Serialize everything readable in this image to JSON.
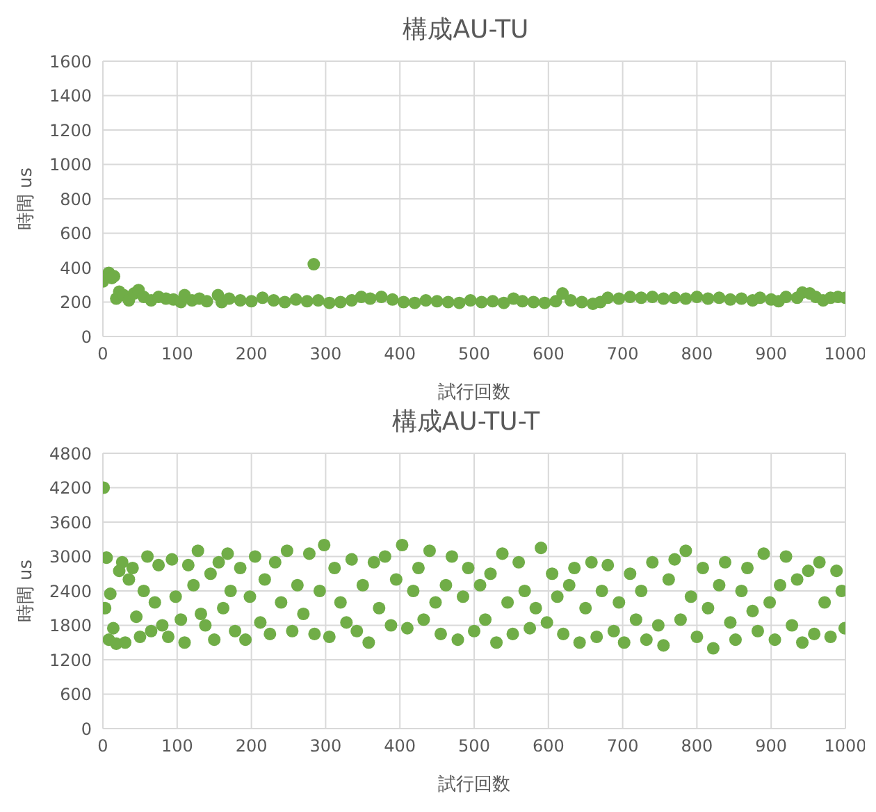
{
  "chart_data": [
    {
      "type": "scatter",
      "title": "構成AU-TU",
      "xlabel": "試行回数",
      "ylabel": "時間 us",
      "xlim": [
        0,
        1000
      ],
      "xticks": [
        0,
        100,
        200,
        300,
        400,
        500,
        600,
        700,
        800,
        900,
        1000
      ],
      "ylim": [
        0,
        1600
      ],
      "yticks": [
        0,
        200,
        400,
        600,
        800,
        1000,
        1200,
        1400,
        1600
      ],
      "grid": true,
      "marker": "circle",
      "series": [
        {
          "color": "#70ad47",
          "x": [
            0,
            8,
            12,
            15,
            18,
            22,
            28,
            35,
            42,
            48,
            55,
            65,
            75,
            85,
            95,
            105,
            110,
            120,
            130,
            140,
            155,
            160,
            170,
            185,
            200,
            215,
            230,
            245,
            260,
            275,
            284,
            290,
            305,
            320,
            335,
            348,
            360,
            375,
            390,
            405,
            420,
            435,
            450,
            465,
            480,
            495,
            510,
            525,
            540,
            553,
            565,
            580,
            595,
            610,
            619,
            630,
            645,
            660,
            670,
            680,
            695,
            710,
            725,
            740,
            755,
            770,
            785,
            800,
            815,
            830,
            845,
            860,
            875,
            885,
            900,
            910,
            920,
            935,
            942,
            952,
            960,
            970,
            980,
            990,
            1000
          ],
          "values": [
            320,
            370,
            340,
            350,
            220,
            260,
            240,
            210,
            250,
            270,
            230,
            210,
            230,
            220,
            215,
            200,
            240,
            210,
            220,
            205,
            240,
            200,
            220,
            210,
            205,
            225,
            210,
            200,
            215,
            205,
            420,
            210,
            195,
            200,
            210,
            230,
            220,
            230,
            215,
            200,
            195,
            210,
            205,
            200,
            195,
            210,
            200,
            205,
            195,
            220,
            205,
            200,
            195,
            205,
            250,
            210,
            200,
            190,
            200,
            225,
            220,
            230,
            225,
            230,
            220,
            225,
            220,
            230,
            220,
            225,
            215,
            220,
            210,
            225,
            215,
            205,
            230,
            225,
            255,
            250,
            230,
            210,
            225,
            230,
            225
          ]
        }
      ]
    },
    {
      "type": "scatter",
      "title": "構成AU-TU-T",
      "xlabel": "試行回数",
      "ylabel": "時間 us",
      "xlim": [
        0,
        1000
      ],
      "xticks": [
        0,
        100,
        200,
        300,
        400,
        500,
        600,
        700,
        800,
        900,
        1000
      ],
      "ylim": [
        0,
        4800
      ],
      "yticks": [
        0,
        600,
        1200,
        1800,
        2400,
        3000,
        3600,
        4200,
        4800
      ],
      "grid": true,
      "marker": "circle",
      "series": [
        {
          "color": "#70ad47",
          "x": [
            1,
            3,
            5,
            8,
            10,
            14,
            18,
            22,
            26,
            30,
            35,
            40,
            45,
            50,
            55,
            60,
            65,
            70,
            75,
            80,
            88,
            93,
            98,
            105,
            110,
            115,
            122,
            128,
            132,
            138,
            145,
            150,
            156,
            162,
            168,
            172,
            178,
            185,
            192,
            198,
            205,
            212,
            218,
            225,
            232,
            240,
            248,
            255,
            262,
            270,
            278,
            285,
            292,
            298,
            305,
            312,
            320,
            328,
            335,
            342,
            350,
            358,
            365,
            372,
            380,
            388,
            395,
            403,
            410,
            418,
            425,
            432,
            440,
            448,
            455,
            462,
            470,
            478,
            485,
            492,
            500,
            508,
            515,
            522,
            530,
            538,
            545,
            552,
            560,
            568,
            575,
            583,
            590,
            598,
            605,
            612,
            620,
            628,
            635,
            642,
            650,
            658,
            665,
            672,
            680,
            688,
            695,
            702,
            710,
            718,
            725,
            732,
            740,
            748,
            755,
            762,
            770,
            778,
            785,
            792,
            800,
            808,
            815,
            822,
            830,
            838,
            845,
            852,
            860,
            868,
            875,
            882,
            890,
            898,
            905,
            912,
            920,
            928,
            935,
            942,
            950,
            958,
            965,
            972,
            980,
            988,
            995,
            999
          ],
          "values": [
            4200,
            2100,
            2980,
            1550,
            2350,
            1750,
            1480,
            2750,
            2900,
            1500,
            2600,
            2800,
            1950,
            1600,
            2400,
            3000,
            1700,
            2200,
            2850,
            1800,
            1600,
            2950,
            2300,
            1900,
            1500,
            2850,
            2500,
            3100,
            2000,
            1800,
            2700,
            1550,
            2900,
            2100,
            3050,
            2400,
            1700,
            2800,
            1550,
            2300,
            3000,
            1850,
            2600,
            1650,
            2900,
            2200,
            3100,
            1700,
            2500,
            2000,
            3050,
            1650,
            2400,
            3200,
            1600,
            2800,
            2200,
            1850,
            2950,
            1700,
            2500,
            1500,
            2900,
            2100,
            3000,
            1800,
            2600,
            3200,
            1750,
            2400,
            2800,
            1900,
            3100,
            2200,
            1650,
            2500,
            3000,
            1550,
            2300,
            2800,
            1700,
            2500,
            1900,
            2700,
            1500,
            3050,
            2200,
            1650,
            2900,
            2400,
            1750,
            2100,
            3150,
            1850,
            2700,
            2300,
            1650,
            2500,
            2800,
            1500,
            2100,
            2900,
            1600,
            2400,
            2850,
            1700,
            2200,
            1500,
            2700,
            1900,
            2400,
            1550,
            2900,
            1800,
            1450,
            2600,
            2950,
            1900,
            3100,
            2300,
            1600,
            2800,
            2100,
            1400,
            2500,
            2900,
            1850,
            1550,
            2400,
            2800,
            2050,
            1700,
            3050,
            2200,
            1550,
            2500,
            3000,
            1800,
            2600,
            1500,
            2750,
            1650,
            2900,
            2200,
            1600,
            2750,
            2400,
            1750
          ]
        }
      ]
    }
  ]
}
